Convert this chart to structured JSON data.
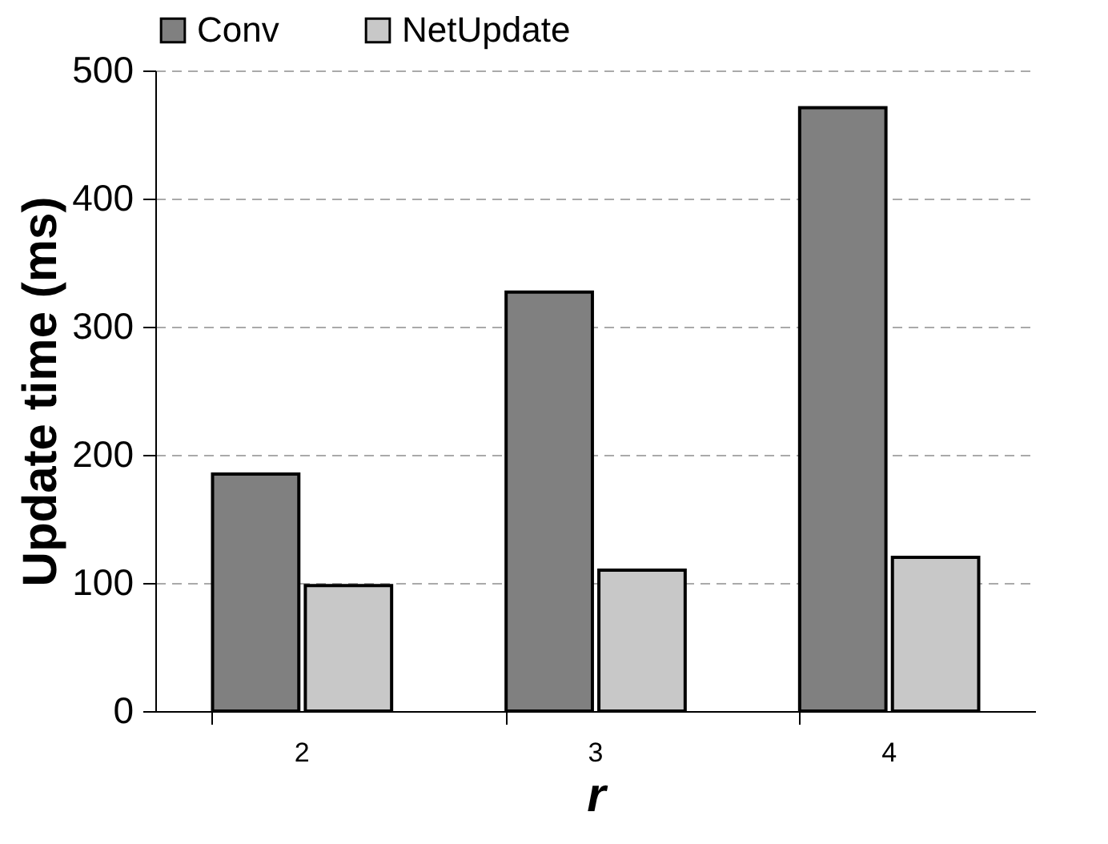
{
  "chart_data": {
    "type": "bar",
    "xlabel": "r",
    "ylabel": "Update time (ms)",
    "categories": [
      "2",
      "3",
      "4"
    ],
    "series": [
      {
        "name": "Conv",
        "color": "#808080",
        "values": [
          185,
          327,
          471
        ]
      },
      {
        "name": "NetUpdate",
        "color": "#c8c8c8",
        "values": [
          98,
          110,
          120
        ]
      }
    ],
    "ylim": [
      0,
      500
    ],
    "yticks": [
      0,
      100,
      200,
      300,
      400,
      500
    ],
    "grid": "y",
    "legend": "top"
  }
}
